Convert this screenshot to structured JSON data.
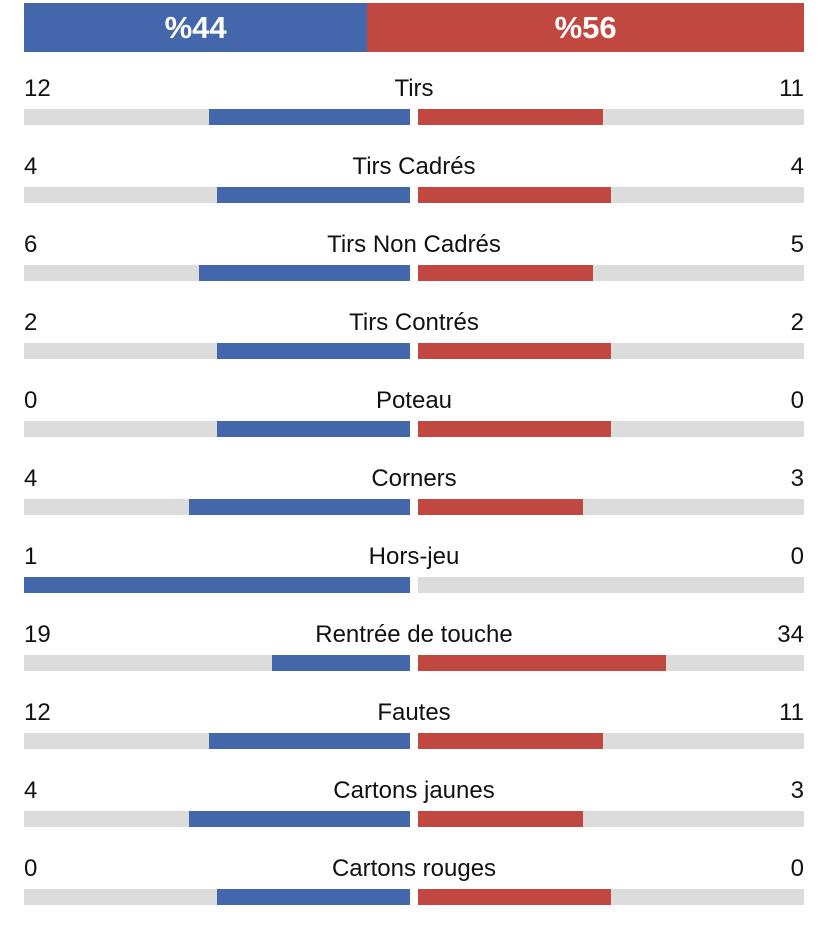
{
  "colors": {
    "home": "#4466aa",
    "away": "#c14841",
    "track": "#dcdcdc"
  },
  "possession": {
    "home": 44,
    "away": 56,
    "home_label": "%44",
    "away_label": "%56"
  },
  "stats": [
    {
      "label": "Tirs",
      "home": "12",
      "away": "11"
    },
    {
      "label": "Tirs Cadrés",
      "home": "4",
      "away": "4"
    },
    {
      "label": "Tirs Non Cadrés",
      "home": "6",
      "away": "5"
    },
    {
      "label": "Tirs Contrés",
      "home": "2",
      "away": "2"
    },
    {
      "label": "Poteau",
      "home": "0",
      "away": "0"
    },
    {
      "label": "Corners",
      "home": "4",
      "away": "3"
    },
    {
      "label": "Hors-jeu",
      "home": "1",
      "away": "0"
    },
    {
      "label": "Rentrée de touche",
      "home": "19",
      "away": "34"
    },
    {
      "label": "Fautes",
      "home": "12",
      "away": "11"
    },
    {
      "label": "Cartons jaunes",
      "home": "4",
      "away": "3"
    },
    {
      "label": "Cartons rouges",
      "home": "0",
      "away": "0"
    }
  ]
}
